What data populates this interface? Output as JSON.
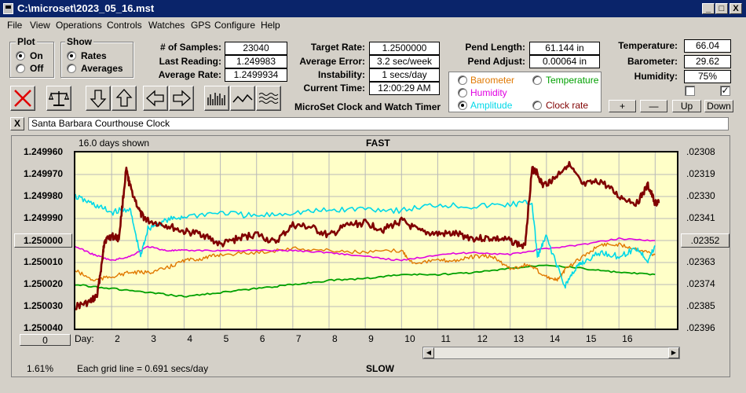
{
  "window": {
    "title": "C:\\microset\\2023_05_16.mst",
    "minimize": "_",
    "maximize": "□",
    "close": "X"
  },
  "menu": [
    "File",
    "View",
    "Operations",
    "Controls",
    "Watches",
    "GPS",
    "Configure",
    "Help"
  ],
  "plot_group": {
    "label": "Plot",
    "options": [
      "On",
      "Off"
    ],
    "selected": "On"
  },
  "show_group": {
    "label": "Show",
    "options": [
      "Rates",
      "Averages"
    ],
    "selected": "Rates"
  },
  "stats": {
    "samples_label": "# of Samples:",
    "samples": "23040",
    "last_label": "Last Reading:",
    "last": "1.249983",
    "avg_label": "Average Rate:",
    "avg": "1.2499934",
    "target_label": "Target Rate:",
    "target": "1.2500000",
    "avgerr_label": "Average Error:",
    "avgerr": "3.2 sec/week",
    "instab_label": "Instability:",
    "instab": "1 secs/day",
    "time_label": "Current Time:",
    "time": "12:00:29 AM",
    "pendlen_label": "Pend Length:",
    "pendlen": "61.144 in",
    "pendadj_label": "Pend Adjust:",
    "pendadj": "0.00064 in",
    "temp_label": "Temperature:",
    "temp": "66.04",
    "baro_label": "Barometer:",
    "baro": "29.62",
    "hum_label": "Humidity:",
    "hum": "75%"
  },
  "product_title": "MicroSet Clock and Watch Timer",
  "overlay": {
    "options": [
      {
        "label": "Barometer",
        "color": "#e07800"
      },
      {
        "label": "Temperature",
        "color": "#00a000"
      },
      {
        "label": "Humidity",
        "color": "#e000e0"
      },
      {
        "label": "Amplitude",
        "color": "#00d8e8"
      },
      {
        "label": "Clock rate",
        "color": "#800000"
      }
    ],
    "selected": "Amplitude"
  },
  "adjust_buttons": [
    "+",
    "—",
    "Up",
    "Down"
  ],
  "checkboxes": [
    {
      "checked": false
    },
    {
      "checked": true
    }
  ],
  "watch": {
    "close": "X",
    "name": "Santa Barbara Courthouse Clock"
  },
  "chart": {
    "days_shown": "16.0 days shown",
    "top_label": "FAST",
    "bottom_label": "SLOW",
    "grid_note": "Each grid line = 0.691 secs/day",
    "left_ticks": [
      "1.249960",
      "1.249970",
      "1.249980",
      "1.249990",
      "1.250000",
      "1.250010",
      "1.250020",
      "1.250030",
      "1.250040"
    ],
    "right_ticks": [
      ".02308",
      ".02319",
      ".02330",
      ".02341",
      ".02352",
      ".02363",
      ".02374",
      ".02385",
      ".02396"
    ],
    "left_button": "1.250000",
    "right_button": ".02352",
    "bottom_left_button": "0",
    "percent": "1.61%",
    "day_label": "Day:",
    "days": [
      "2",
      "3",
      "4",
      "5",
      "6",
      "7",
      "8",
      "9",
      "10",
      "11",
      "12",
      "13",
      "14",
      "15",
      "16"
    ]
  },
  "chart_data": {
    "type": "line",
    "x_label": "Day:",
    "xlim": [
      1,
      17.6
    ],
    "ylim": [
      1.24996,
      1.25004
    ],
    "y2lim": [
      0.02308,
      0.02396
    ],
    "series": [
      {
        "color": "#800000",
        "axis": "left",
        "x": [
          1,
          1.4,
          1.6,
          1.75,
          1.8,
          2.0,
          2.2,
          2.4,
          2.5,
          2.8,
          3.0,
          3.5,
          4,
          4.5,
          5,
          5.5,
          6,
          6.5,
          7,
          7.5,
          8,
          8.5,
          9,
          9.5,
          10,
          10.5,
          11,
          11.5,
          12,
          12.5,
          13,
          13.4,
          13.6,
          13.7,
          13.9,
          14.2,
          14.6,
          15,
          15.5,
          16,
          16.5,
          16.8,
          17.0,
          17.1
        ],
        "y": [
          1.25003,
          1.250028,
          1.250025,
          1.250008,
          1.25,
          1.249998,
          1.249999,
          1.249968,
          1.249975,
          1.249988,
          1.249991,
          1.249993,
          1.249996,
          1.249997,
          1.250002,
          1.249999,
          1.249997,
          1.250001,
          1.249993,
          1.249994,
          1.249998,
          1.249993,
          1.249992,
          1.249995,
          1.249991,
          1.249996,
          1.249997,
          1.249997,
          1.249999,
          1.249999,
          1.25,
          1.250003,
          1.249968,
          1.249968,
          1.249975,
          1.249972,
          1.249965,
          1.249975,
          1.249973,
          1.24998,
          1.249983,
          1.249975,
          1.249983,
          1.249983
        ]
      },
      {
        "color": "#00d8e8",
        "axis": "right",
        "x": [
          1,
          1.5,
          2.0,
          2.5,
          2.8,
          3,
          3.5,
          4,
          5,
          6,
          7,
          8,
          9,
          10,
          11,
          12,
          13,
          13.6,
          13.75,
          14,
          14.5,
          14.8,
          15,
          15.5,
          16,
          16.5,
          16.8,
          17.0
        ],
        "y": [
          0.0233,
          0.02334,
          0.02338,
          0.02336,
          0.0236,
          0.02346,
          0.02342,
          0.0234,
          0.02338,
          0.0234,
          0.02338,
          0.02337,
          0.02336,
          0.02337,
          0.02334,
          0.02335,
          0.02334,
          0.02333,
          0.0236,
          0.0235,
          0.02375,
          0.02366,
          0.02363,
          0.02358,
          0.0236,
          0.02356,
          0.02362,
          0.02355
        ]
      },
      {
        "color": "#e000e0",
        "axis": "right",
        "x": [
          1,
          1.5,
          2,
          2.5,
          3,
          3.5,
          4,
          5,
          6,
          7,
          8,
          9,
          10,
          11,
          12,
          13,
          14,
          15,
          16,
          17
        ],
        "y": [
          0.02355,
          0.02359,
          0.02362,
          0.0236,
          0.02355,
          0.02357,
          0.02357,
          0.02357,
          0.02357,
          0.02357,
          0.02358,
          0.0236,
          0.02362,
          0.02359,
          0.02358,
          0.02359,
          0.02356,
          0.02354,
          0.02351,
          0.02352
        ]
      },
      {
        "color": "#e07800",
        "axis": "right",
        "x": [
          1,
          1.5,
          2,
          2.5,
          3,
          3.5,
          4,
          4.5,
          5,
          6,
          7,
          8,
          9,
          10,
          10.3,
          11,
          11.5,
          12,
          12.5,
          13,
          13.5,
          14,
          14.3,
          14.5,
          15,
          15.5,
          16,
          16.5,
          17
        ],
        "y": [
          0.02367,
          0.02372,
          0.0237,
          0.02368,
          0.02368,
          0.02366,
          0.02362,
          0.02361,
          0.02359,
          0.02358,
          0.02356,
          0.02357,
          0.02358,
          0.02357,
          0.02363,
          0.02362,
          0.02362,
          0.0236,
          0.0236,
          0.02366,
          0.02364,
          0.0237,
          0.02372,
          0.02367,
          0.0236,
          0.02354,
          0.02354,
          0.02356,
          0.02359
        ]
      },
      {
        "color": "#00a000",
        "axis": "right",
        "x": [
          1,
          2,
          3,
          4,
          5,
          6,
          7,
          8,
          9,
          10,
          11,
          12,
          13,
          14,
          15,
          16,
          17
        ],
        "y": [
          0.02374,
          0.02376,
          0.02378,
          0.0238,
          0.02378,
          0.02376,
          0.02374,
          0.02372,
          0.02371,
          0.02369,
          0.02369,
          0.02368,
          0.02366,
          0.02364,
          0.02366,
          0.02368,
          0.02369
        ]
      }
    ]
  }
}
